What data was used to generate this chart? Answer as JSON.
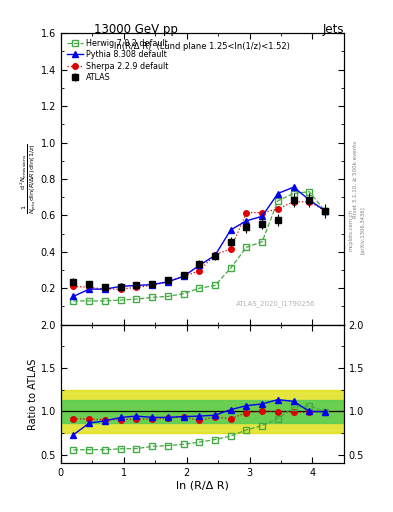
{
  "title_left": "13000 GeV pp",
  "title_right": "Jets",
  "annotation": "ln(R/Δ R)  (Lund plane 1.25<ln(1/z)<1.52)",
  "watermark": "ATLAS_2020_I1790256",
  "ylabel_main_line1": "d² N",
  "ylabel_ratio": "Ratio to ATLAS",
  "xlabel": "ln (R/Δ R)",
  "rivet_label": "Rivet 3.1.10, ≥ 500k events",
  "arxiv_label": "[arXiv:1306.3436]",
  "mcplots_label": "mcplots.cern.ch",
  "ylim_main": [
    0.0,
    1.6
  ],
  "ylim_ratio": [
    0.4,
    2.0
  ],
  "yticks_main": [
    0.2,
    0.4,
    0.6,
    0.8,
    1.0,
    1.2,
    1.4,
    1.6
  ],
  "yticks_ratio": [
    0.5,
    1.0,
    1.5,
    2.0
  ],
  "xlim": [
    0.0,
    4.5
  ],
  "xticks": [
    0,
    1,
    2,
    3,
    4
  ],
  "atlas_x": [
    0.2,
    0.45,
    0.7,
    0.95,
    1.2,
    1.45,
    1.7,
    1.95,
    2.2,
    2.45,
    2.7,
    2.95,
    3.2,
    3.45,
    3.7,
    3.95,
    4.2
  ],
  "atlas_y": [
    0.235,
    0.225,
    0.205,
    0.205,
    0.215,
    0.225,
    0.245,
    0.27,
    0.335,
    0.375,
    0.455,
    0.535,
    0.555,
    0.575,
    0.685,
    0.685,
    0.625
  ],
  "atlas_yerr": [
    0.02,
    0.015,
    0.013,
    0.012,
    0.012,
    0.013,
    0.013,
    0.015,
    0.018,
    0.02,
    0.025,
    0.03,
    0.032,
    0.035,
    0.04,
    0.04,
    0.04
  ],
  "herwig_x": [
    0.2,
    0.45,
    0.7,
    0.95,
    1.2,
    1.45,
    1.7,
    1.95,
    2.2,
    2.45,
    2.7,
    2.95,
    3.2,
    3.45,
    3.7,
    3.95,
    4.2
  ],
  "herwig_y": [
    0.13,
    0.13,
    0.13,
    0.135,
    0.14,
    0.15,
    0.155,
    0.17,
    0.2,
    0.215,
    0.31,
    0.425,
    0.455,
    0.68,
    0.72,
    0.73,
    0.625
  ],
  "pythia_x": [
    0.2,
    0.45,
    0.7,
    0.95,
    1.2,
    1.45,
    1.7,
    1.95,
    2.2,
    2.45,
    2.7,
    2.95,
    3.2,
    3.45,
    3.7,
    3.95,
    4.2
  ],
  "pythia_y": [
    0.155,
    0.195,
    0.195,
    0.21,
    0.215,
    0.22,
    0.235,
    0.265,
    0.325,
    0.38,
    0.52,
    0.57,
    0.595,
    0.72,
    0.755,
    0.685,
    0.625
  ],
  "sherpa_x": [
    0.2,
    0.45,
    0.7,
    0.95,
    1.2,
    1.45,
    1.7,
    1.95,
    2.2,
    2.45,
    2.7,
    2.95,
    3.2,
    3.45,
    3.7,
    3.95,
    4.2
  ],
  "sherpa_y": [
    0.21,
    0.205,
    0.195,
    0.195,
    0.205,
    0.215,
    0.235,
    0.265,
    0.295,
    0.385,
    0.415,
    0.615,
    0.615,
    0.635,
    0.675,
    0.675,
    0.625
  ],
  "herwig_ratio": [
    0.555,
    0.558,
    0.558,
    0.568,
    0.57,
    0.595,
    0.605,
    0.62,
    0.645,
    0.675,
    0.715,
    0.785,
    0.835,
    0.915,
    1.045,
    1.065,
    0.995
  ],
  "pythia_ratio": [
    0.73,
    0.865,
    0.89,
    0.93,
    0.945,
    0.93,
    0.93,
    0.94,
    0.945,
    0.955,
    1.02,
    1.065,
    1.085,
    1.135,
    1.115,
    1.0,
    0.995
  ],
  "sherpa_ratio": [
    0.915,
    0.91,
    0.905,
    0.905,
    0.91,
    0.91,
    0.92,
    0.94,
    0.895,
    0.935,
    0.915,
    0.985,
    1.0,
    0.998,
    0.992,
    0.988,
    0.998
  ],
  "band_inner_lo": 0.87,
  "band_inner_hi": 1.13,
  "band_outer_lo": 0.75,
  "band_outer_hi": 1.25,
  "color_atlas": "black",
  "color_herwig": "#44aa44",
  "color_pythia": "#0000ee",
  "color_sherpa": "#dd0000",
  "color_band_inner": "#55cc55",
  "color_band_outer": "#dddd00"
}
